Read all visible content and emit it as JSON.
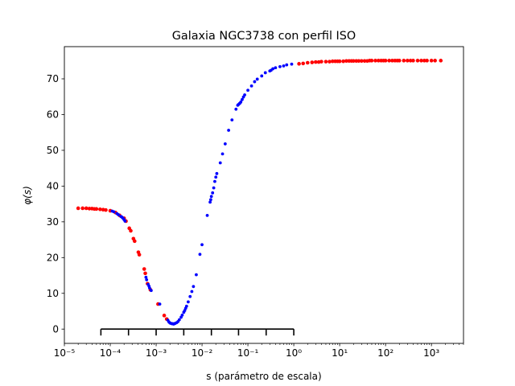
{
  "chart_data": {
    "type": "scatter",
    "title": "Galaxia NGC3738 con perfil ISO",
    "xlabel": "s (parámetro de escala)",
    "ylabel": "φ(s)",
    "x_scale": "log",
    "xlim": [
      1e-05,
      5000
    ],
    "ylim": [
      -4,
      79
    ],
    "x_tick_labels": [
      "10⁻⁵",
      "10⁻⁴",
      "10⁻³",
      "10⁻²",
      "10⁻¹",
      "10⁰",
      "10¹",
      "10²",
      "10³"
    ],
    "x_tick_values": [
      1e-05,
      0.0001,
      0.001,
      0.01,
      0.1,
      1,
      10,
      100,
      1000
    ],
    "y_tick_values": [
      0,
      10,
      20,
      30,
      40,
      50,
      60,
      70
    ],
    "y_tick_labels": [
      "0",
      "10",
      "20",
      "30",
      "40",
      "50",
      "60",
      "70"
    ],
    "grid": false,
    "scale_bar": {
      "x_range": [
        6.25e-05,
        1
      ],
      "y": 0,
      "tick_positions": [
        6.25e-05,
        0.00025,
        0.001,
        0.004,
        0.016,
        0.0625,
        0.25,
        1
      ]
    },
    "series": [
      {
        "color": "#ff0000",
        "points": [
          [
            2e-05,
            33.8
          ],
          [
            2.5e-05,
            33.8
          ],
          [
            3e-05,
            33.8
          ],
          [
            3.5e-05,
            33.7
          ],
          [
            4e-05,
            33.7
          ],
          [
            4.5e-05,
            33.6
          ],
          [
            5e-05,
            33.6
          ],
          [
            6e-05,
            33.5
          ],
          [
            7e-05,
            33.4
          ],
          [
            8e-05,
            33.3
          ],
          [
            0.0001,
            33.1
          ],
          [
            0.00013,
            32.6
          ],
          [
            0.00016,
            31.8
          ],
          [
            0.0002,
            31.0
          ],
          [
            0.00022,
            30.2
          ],
          [
            0.00026,
            28.2
          ],
          [
            0.00028,
            27.5
          ],
          [
            0.00032,
            25.3
          ],
          [
            0.00034,
            24.6
          ],
          [
            0.00041,
            21.5
          ],
          [
            0.00043,
            20.8
          ],
          [
            0.00055,
            16.8
          ],
          [
            0.00058,
            15.6
          ],
          [
            0.00065,
            12.7
          ],
          [
            0.00075,
            11.0
          ],
          [
            0.0011,
            7.0
          ],
          [
            0.0015,
            3.8
          ],
          [
            0.0017,
            2.8
          ],
          [
            1.3,
            74.2
          ],
          [
            1.6,
            74.3
          ],
          [
            2,
            74.5
          ],
          [
            2.5,
            74.6
          ],
          [
            3,
            74.7
          ],
          [
            3.5,
            74.7
          ],
          [
            4,
            74.8
          ],
          [
            5,
            74.8
          ],
          [
            6,
            74.8
          ],
          [
            7,
            74.9
          ],
          [
            8,
            74.9
          ],
          [
            9,
            74.9
          ],
          [
            10,
            74.9
          ],
          [
            12,
            74.9
          ],
          [
            14,
            75.0
          ],
          [
            16,
            75.0
          ],
          [
            18,
            75.0
          ],
          [
            20,
            75.0
          ],
          [
            23,
            75.0
          ],
          [
            26,
            75.0
          ],
          [
            30,
            75.0
          ],
          [
            35,
            75.0
          ],
          [
            40,
            75.0
          ],
          [
            45,
            75.1
          ],
          [
            50,
            75.1
          ],
          [
            60,
            75.1
          ],
          [
            70,
            75.1
          ],
          [
            80,
            75.1
          ],
          [
            90,
            75.1
          ],
          [
            100,
            75.1
          ],
          [
            120,
            75.1
          ],
          [
            140,
            75.1
          ],
          [
            160,
            75.1
          ],
          [
            180,
            75.1
          ],
          [
            200,
            75.1
          ],
          [
            250,
            75.1
          ],
          [
            300,
            75.1
          ],
          [
            350,
            75.1
          ],
          [
            400,
            75.1
          ],
          [
            500,
            75.1
          ],
          [
            600,
            75.1
          ],
          [
            700,
            75.1
          ],
          [
            800,
            75.1
          ],
          [
            1000,
            75.1
          ],
          [
            1200,
            75.1
          ],
          [
            1600,
            75.1
          ]
        ]
      },
      {
        "color": "#0000ff",
        "points": [
          [
            0.00011,
            33.0
          ],
          [
            0.00012,
            32.8
          ],
          [
            0.00014,
            32.3
          ],
          [
            0.00015,
            32.0
          ],
          [
            0.00017,
            31.5
          ],
          [
            0.00018,
            31.3
          ],
          [
            0.00019,
            31.0
          ],
          [
            0.0002,
            30.6
          ],
          [
            0.00021,
            30.2
          ],
          [
            0.0006,
            14.5
          ],
          [
            0.00062,
            13.8
          ],
          [
            0.00067,
            12.5
          ],
          [
            0.0007,
            12.0
          ],
          [
            0.00072,
            11.5
          ],
          [
            0.00078,
            10.8
          ],
          [
            0.0012,
            7.0
          ],
          [
            0.0018,
            2.5
          ],
          [
            0.0019,
            2.0
          ],
          [
            0.002,
            1.7
          ],
          [
            0.0021,
            1.6
          ],
          [
            0.0022,
            1.5
          ],
          [
            0.0023,
            1.5
          ],
          [
            0.0024,
            1.4
          ],
          [
            0.0025,
            1.5
          ],
          [
            0.0026,
            1.6
          ],
          [
            0.0028,
            1.8
          ],
          [
            0.003,
            2.1
          ],
          [
            0.0032,
            2.6
          ],
          [
            0.0035,
            3.3
          ],
          [
            0.0037,
            3.9
          ],
          [
            0.004,
            4.7
          ],
          [
            0.0042,
            5.2
          ],
          [
            0.0044,
            5.8
          ],
          [
            0.0046,
            6.4
          ],
          [
            0.005,
            7.6
          ],
          [
            0.0055,
            9.1
          ],
          [
            0.006,
            10.5
          ],
          [
            0.0065,
            11.9
          ],
          [
            0.0075,
            15.2
          ],
          [
            0.009,
            20.9
          ],
          [
            0.01,
            23.6
          ],
          [
            0.013,
            31.8
          ],
          [
            0.015,
            35.5
          ],
          [
            0.0155,
            36.2
          ],
          [
            0.016,
            37.1
          ],
          [
            0.017,
            38.1
          ],
          [
            0.018,
            39.5
          ],
          [
            0.019,
            41.3
          ],
          [
            0.02,
            42.5
          ],
          [
            0.021,
            43.5
          ],
          [
            0.025,
            46.5
          ],
          [
            0.028,
            49.0
          ],
          [
            0.032,
            51.8
          ],
          [
            0.038,
            55.6
          ],
          [
            0.045,
            58.5
          ],
          [
            0.055,
            61.5
          ],
          [
            0.06,
            62.6
          ],
          [
            0.062,
            62.8
          ],
          [
            0.066,
            63.1
          ],
          [
            0.07,
            63.5
          ],
          [
            0.075,
            64.2
          ],
          [
            0.08,
            64.9
          ],
          [
            0.085,
            65.5
          ],
          [
            0.1,
            66.8
          ],
          [
            0.12,
            68.0
          ],
          [
            0.14,
            69.2
          ],
          [
            0.16,
            69.9
          ],
          [
            0.2,
            70.8
          ],
          [
            0.24,
            71.7
          ],
          [
            0.3,
            72.2
          ],
          [
            0.32,
            72.4
          ],
          [
            0.35,
            72.8
          ],
          [
            0.4,
            73.1
          ],
          [
            0.5,
            73.4
          ],
          [
            0.6,
            73.6
          ],
          [
            0.7,
            73.9
          ],
          [
            0.9,
            74.1
          ]
        ]
      }
    ]
  }
}
